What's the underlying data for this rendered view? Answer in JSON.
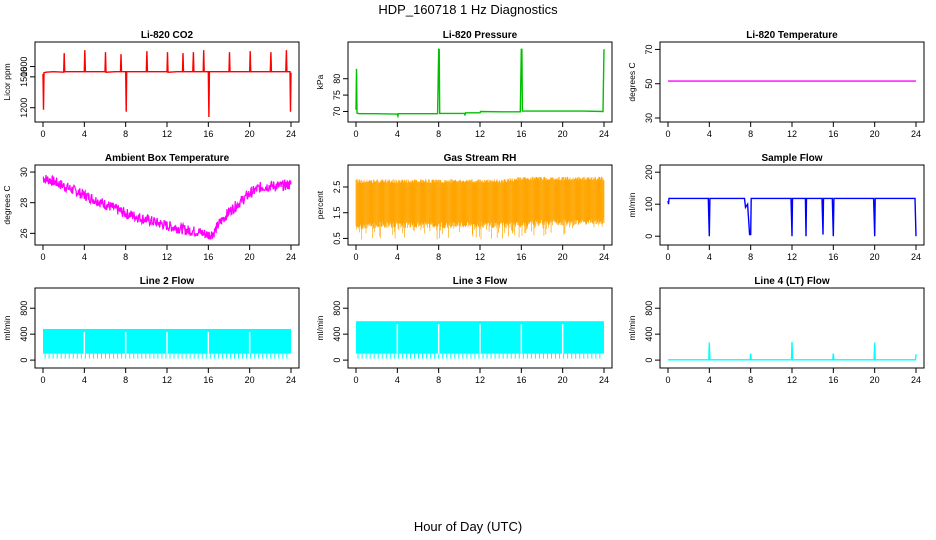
{
  "figure": {
    "title": "HDP_160718  1 Hz Diagnostics",
    "xlabel": "Hour of Day (UTC)"
  },
  "chart_data": [
    {
      "type": "line",
      "title": "Li-820 CO2",
      "ylabel": "Licor ppm",
      "color": "#ff0000",
      "xlim": [
        0,
        24
      ],
      "ylim": [
        1100,
        1800
      ],
      "xticks": [
        "0",
        "4",
        "8",
        "12",
        "16",
        "20",
        "24"
      ],
      "yticks": [
        1200,
        1500,
        1600
      ],
      "series": [
        {
          "x": [
            0,
            0.05,
            0.1,
            0.3,
            1,
            2,
            2.05,
            2.1,
            3,
            4,
            4.05,
            4.1,
            5,
            6,
            6.05,
            6.1,
            7,
            7.5,
            7.55,
            7.6,
            8,
            8.05,
            8.1,
            8.15,
            9,
            10,
            10.05,
            10.1,
            11,
            12,
            12.05,
            12.1,
            13,
            13.5,
            13.55,
            13.6,
            14,
            14.5,
            14.55,
            14.6,
            15,
            15.5,
            15.55,
            15.6,
            16,
            16.05,
            16.1,
            16.15,
            17,
            18,
            18.05,
            18.1,
            19,
            20,
            20.05,
            20.1,
            21,
            22,
            22.05,
            22.1,
            23,
            23.5,
            23.55,
            23.6,
            23.9,
            23.95,
            24
          ],
          "y": [
            1530,
            1180,
            1540,
            1545,
            1550,
            1545,
            1730,
            1550,
            1550,
            1550,
            1760,
            1550,
            1550,
            1550,
            1740,
            1545,
            1550,
            1550,
            1720,
            1550,
            1550,
            1160,
            1550,
            1550,
            1550,
            1550,
            1750,
            1550,
            1550,
            1550,
            1740,
            1545,
            1550,
            1550,
            1730,
            1550,
            1550,
            1550,
            1740,
            1550,
            1550,
            1550,
            1760,
            1550,
            1550,
            1110,
            1550,
            1550,
            1550,
            1550,
            1740,
            1550,
            1550,
            1550,
            1750,
            1550,
            1550,
            1550,
            1740,
            1550,
            1550,
            1550,
            1760,
            1550,
            1550,
            1160,
            1540
          ]
        }
      ]
    },
    {
      "type": "line",
      "title": "Li-820 Pressure",
      "ylabel": "kPa",
      "color": "#00c000",
      "xlim": [
        0,
        24
      ],
      "ylim": [
        68,
        90
      ],
      "xticks": [
        "0",
        "4",
        "8",
        "12",
        "16",
        "20",
        "24"
      ],
      "yticks": [
        70,
        75,
        80
      ],
      "series": [
        {
          "x": [
            0,
            0.05,
            0.1,
            0.3,
            2,
            4,
            4.05,
            4.1,
            6,
            7.9,
            8,
            8.05,
            8.1,
            10,
            10.5,
            10.55,
            10.6,
            12,
            12.05,
            14,
            15.9,
            16,
            16.05,
            16.1,
            18,
            20,
            22,
            23.9,
            24
          ],
          "y": [
            70.5,
            83,
            69.5,
            69.3,
            69.3,
            69.2,
            68.6,
            69.3,
            69.3,
            69.3,
            89,
            89,
            69.4,
            69.4,
            69.4,
            68.8,
            69.6,
            69.6,
            70,
            69.9,
            69.9,
            89,
            89,
            70.1,
            70.1,
            70.1,
            70.1,
            70,
            89
          ]
        }
      ]
    },
    {
      "type": "line",
      "title": "Li-820 Temperature",
      "ylabel": "degrees C",
      "color": "#ff00ff",
      "xlim": [
        0,
        24
      ],
      "ylim": [
        30,
        72
      ],
      "xticks": [
        "0",
        "4",
        "8",
        "12",
        "16",
        "20",
        "24"
      ],
      "yticks": [
        30,
        50,
        70
      ],
      "series": [
        {
          "x": [
            0,
            24
          ],
          "y": [
            51.5,
            51.5
          ]
        }
      ]
    },
    {
      "type": "line",
      "title": "Ambient Box Temperature",
      "ylabel": "degrees C",
      "color": "#ff00ff",
      "xlim": [
        0,
        24
      ],
      "ylim": [
        25.5,
        30.2
      ],
      "xticks": [
        "0",
        "4",
        "8",
        "12",
        "16",
        "20",
        "24"
      ],
      "yticks": [
        26,
        28,
        30
      ],
      "band": 0.35,
      "series": [
        {
          "x": [
            0,
            1,
            2,
            4,
            6,
            8,
            10,
            12,
            14,
            15,
            16,
            16.5,
            17,
            18,
            19,
            20,
            21,
            22,
            23,
            24
          ],
          "y": [
            29.6,
            29.4,
            29.1,
            28.5,
            27.9,
            27.3,
            26.9,
            26.5,
            26.2,
            26.1,
            25.9,
            26.0,
            26.6,
            27.4,
            28.0,
            28.6,
            29.0,
            29.1,
            29.1,
            29.2
          ]
        }
      ]
    },
    {
      "type": "area",
      "title": "Gas Stream RH",
      "ylabel": "percent",
      "color": "#ffa500",
      "xlim": [
        0,
        24
      ],
      "ylim": [
        0.4,
        3.2
      ],
      "xticks": [
        "0",
        "4",
        "8",
        "12",
        "16",
        "20",
        "24"
      ],
      "yticks": [
        0.5,
        1.5,
        2.5
      ],
      "series": [
        {
          "x": [
            0,
            2,
            4,
            8,
            12,
            14,
            16,
            18,
            20,
            24
          ],
          "low": [
            0.8,
            0.9,
            0.9,
            0.9,
            0.9,
            0.9,
            0.9,
            1.0,
            1.0,
            1.0
          ],
          "high": [
            2.8,
            2.8,
            2.8,
            2.8,
            2.8,
            2.8,
            2.9,
            2.9,
            2.9,
            2.9
          ]
        }
      ]
    },
    {
      "type": "line",
      "title": "Sample Flow",
      "ylabel": "ml/min",
      "color": "#0000ff",
      "xlim": [
        0,
        24
      ],
      "ylim": [
        -15,
        210
      ],
      "xticks": [
        "0",
        "4",
        "8",
        "12",
        "16",
        "20",
        "24"
      ],
      "yticks": [
        0,
        100,
        200
      ],
      "series": [
        {
          "x": [
            0,
            0.05,
            0.1,
            3.9,
            4,
            4.05,
            4.1,
            7.4,
            7.5,
            7.7,
            7.9,
            8,
            8.05,
            8.1,
            11.9,
            12,
            12.05,
            12.1,
            13.3,
            13.35,
            13.4,
            14.9,
            15,
            15.05,
            15.1,
            15.9,
            16,
            16.05,
            16.1,
            19.9,
            20,
            20.05,
            20.1,
            23.9,
            24
          ],
          "y": [
            110,
            100,
            118,
            118,
            0,
            118,
            118,
            118,
            90,
            100,
            5,
            5,
            118,
            118,
            118,
            0,
            118,
            118,
            118,
            0,
            118,
            118,
            5,
            118,
            118,
            118,
            0,
            118,
            118,
            118,
            0,
            118,
            118,
            118,
            0
          ]
        }
      ]
    },
    {
      "type": "area",
      "title": "Line 2 Flow",
      "ylabel": "ml/min",
      "color": "#00ffff",
      "xlim": [
        0,
        24
      ],
      "ylim": [
        -60,
        1050
      ],
      "xticks": [
        "0",
        "4",
        "8",
        "12",
        "16",
        "20",
        "24"
      ],
      "yticks": [
        0,
        400,
        800
      ],
      "series": [
        {
          "low": 100,
          "high": 480,
          "gaps": [
            4,
            8,
            12,
            16,
            20
          ]
        }
      ]
    },
    {
      "type": "area",
      "title": "Line 3 Flow",
      "ylabel": "ml/min",
      "color": "#00ffff",
      "xlim": [
        0,
        24
      ],
      "ylim": [
        -60,
        1050
      ],
      "xticks": [
        "0",
        "4",
        "8",
        "12",
        "16",
        "20",
        "24"
      ],
      "yticks": [
        0,
        400,
        800
      ],
      "series": [
        {
          "low": 100,
          "high": 600,
          "gaps": [
            4,
            8,
            12,
            16,
            20
          ]
        }
      ]
    },
    {
      "type": "line",
      "title": "Line 4 (LT) Flow",
      "ylabel": "ml/min",
      "color": "#00ffff",
      "xlim": [
        0,
        24
      ],
      "ylim": [
        -60,
        1050
      ],
      "xticks": [
        "0",
        "4",
        "8",
        "12",
        "16",
        "20",
        "24"
      ],
      "yticks": [
        0,
        400,
        800
      ],
      "series": [
        {
          "x": [
            0,
            3.95,
            4,
            4.05,
            7.95,
            8,
            8.05,
            11.95,
            12,
            12.05,
            15.95,
            16,
            16.05,
            19.95,
            20,
            20.05,
            23.95,
            24
          ],
          "y": [
            5,
            5,
            270,
            5,
            5,
            100,
            5,
            5,
            280,
            5,
            5,
            100,
            5,
            5,
            270,
            5,
            5,
            90
          ]
        }
      ]
    }
  ]
}
